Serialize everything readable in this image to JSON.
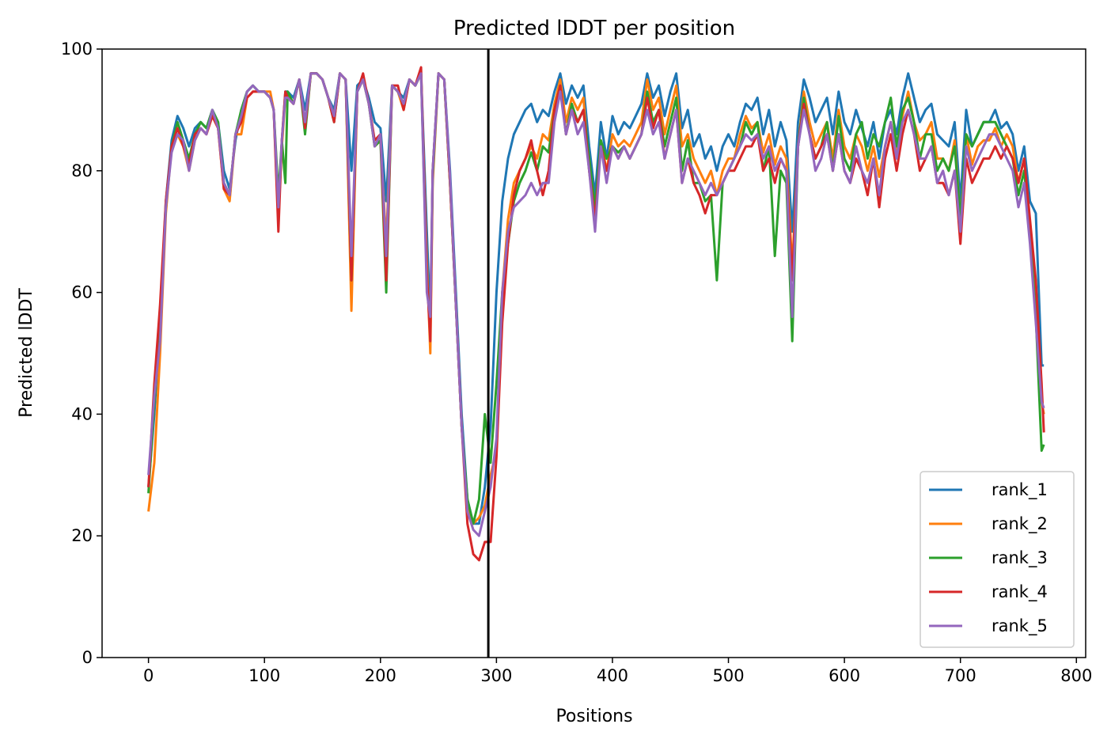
{
  "chart_data": {
    "type": "line",
    "title": "Predicted lDDT per position",
    "xlabel": "Positions",
    "ylabel": "Predicted lDDT",
    "xlim": [
      -40,
      808
    ],
    "ylim": [
      0,
      100
    ],
    "xticks": [
      0,
      100,
      200,
      300,
      400,
      500,
      600,
      700,
      800
    ],
    "yticks": [
      0,
      20,
      40,
      60,
      80,
      100
    ],
    "grid": false,
    "legend_position": "lower right",
    "vline": {
      "x": 293,
      "color": "#000000"
    },
    "x": [
      0,
      5,
      10,
      15,
      20,
      25,
      30,
      35,
      40,
      45,
      50,
      55,
      60,
      65,
      70,
      75,
      80,
      85,
      90,
      95,
      100,
      105,
      108,
      112,
      115,
      118,
      120,
      125,
      130,
      135,
      140,
      145,
      150,
      155,
      160,
      165,
      170,
      175,
      180,
      185,
      190,
      195,
      200,
      205,
      210,
      215,
      220,
      225,
      230,
      235,
      240,
      243,
      245,
      250,
      255,
      260,
      265,
      270,
      275,
      280,
      285,
      290,
      295,
      300,
      305,
      310,
      315,
      320,
      325,
      330,
      335,
      340,
      345,
      350,
      355,
      360,
      365,
      370,
      375,
      380,
      385,
      390,
      395,
      400,
      405,
      410,
      415,
      420,
      425,
      430,
      435,
      440,
      445,
      450,
      455,
      460,
      465,
      470,
      475,
      480,
      485,
      490,
      495,
      500,
      505,
      510,
      515,
      520,
      525,
      530,
      535,
      540,
      545,
      550,
      555,
      560,
      565,
      570,
      575,
      580,
      585,
      590,
      595,
      600,
      605,
      610,
      615,
      620,
      625,
      630,
      635,
      640,
      645,
      650,
      655,
      660,
      665,
      670,
      675,
      680,
      685,
      690,
      695,
      700,
      705,
      710,
      715,
      720,
      725,
      730,
      735,
      740,
      745,
      750,
      755,
      760,
      765,
      770,
      772
    ],
    "series": [
      {
        "name": "rank_1",
        "color": "#1f77b4",
        "values": [
          28,
          40,
          55,
          75,
          85,
          89,
          87,
          84,
          87,
          88,
          87,
          90,
          88,
          80,
          77,
          85,
          90,
          93,
          94,
          93,
          93,
          92,
          90,
          72,
          85,
          93,
          93,
          92,
          95,
          90,
          96,
          96,
          95,
          92,
          90,
          96,
          95,
          80,
          94,
          95,
          92,
          88,
          87,
          75,
          94,
          93,
          92,
          95,
          94,
          96,
          70,
          55,
          80,
          96,
          95,
          80,
          60,
          40,
          26,
          22,
          22,
          28,
          38,
          60,
          75,
          82,
          86,
          88,
          90,
          91,
          88,
          90,
          89,
          93,
          96,
          91,
          94,
          92,
          94,
          84,
          76,
          88,
          82,
          89,
          86,
          88,
          87,
          89,
          91,
          96,
          92,
          94,
          89,
          93,
          96,
          87,
          90,
          84,
          86,
          82,
          84,
          80,
          84,
          86,
          84,
          88,
          91,
          90,
          92,
          86,
          90,
          84,
          88,
          85,
          70,
          88,
          95,
          92,
          88,
          90,
          92,
          86,
          93,
          88,
          86,
          90,
          87,
          84,
          88,
          82,
          88,
          90,
          86,
          92,
          96,
          92,
          88,
          90,
          91,
          86,
          85,
          84,
          88,
          75,
          90,
          84,
          86,
          88,
          88,
          90,
          87,
          88,
          86,
          80,
          84,
          75,
          73,
          48,
          48
        ]
      },
      {
        "name": "rank_2",
        "color": "#ff7f0e",
        "values": [
          24,
          32,
          50,
          73,
          84,
          86,
          84,
          80,
          85,
          87,
          86,
          89,
          87,
          77,
          75,
          86,
          86,
          92,
          93,
          93,
          93,
          93,
          90,
          73,
          84,
          92,
          92,
          91,
          95,
          87,
          96,
          96,
          95,
          92,
          89,
          96,
          95,
          57,
          93,
          95,
          91,
          84,
          85,
          68,
          94,
          93,
          90,
          95,
          94,
          96,
          65,
          50,
          78,
          96,
          95,
          78,
          58,
          38,
          25,
          22,
          23,
          25,
          30,
          34,
          60,
          72,
          78,
          80,
          82,
          84,
          82,
          86,
          85,
          91,
          95,
          88,
          92,
          90,
          92,
          80,
          72,
          85,
          80,
          86,
          84,
          85,
          84,
          86,
          88,
          95,
          90,
          92,
          86,
          90,
          94,
          84,
          86,
          82,
          80,
          78,
          80,
          76,
          80,
          82,
          82,
          86,
          89,
          87,
          88,
          83,
          86,
          81,
          84,
          82,
          64,
          84,
          93,
          88,
          84,
          86,
          88,
          82,
          90,
          84,
          82,
          86,
          84,
          80,
          84,
          79,
          84,
          88,
          83,
          89,
          93,
          88,
          85,
          86,
          88,
          82,
          82,
          80,
          85,
          72,
          86,
          81,
          84,
          85,
          85,
          87,
          84,
          86,
          84,
          78,
          82,
          70,
          60,
          42,
          40
        ]
      },
      {
        "name": "rank_3",
        "color": "#2ca02c",
        "values": [
          27,
          42,
          54,
          74,
          84,
          88,
          85,
          82,
          86,
          88,
          87,
          90,
          88,
          78,
          76,
          86,
          90,
          93,
          94,
          93,
          93,
          92,
          90,
          76,
          85,
          78,
          93,
          91,
          95,
          86,
          96,
          96,
          95,
          92,
          88,
          96,
          95,
          62,
          93,
          95,
          91,
          84,
          85,
          60,
          94,
          93,
          91,
          95,
          94,
          96,
          62,
          54,
          79,
          96,
          95,
          78,
          58,
          38,
          26,
          22,
          26,
          40,
          32,
          45,
          60,
          68,
          75,
          78,
          80,
          83,
          80,
          84,
          83,
          90,
          94,
          86,
          91,
          88,
          90,
          82,
          74,
          85,
          82,
          84,
          83,
          84,
          82,
          84,
          86,
          93,
          88,
          90,
          84,
          88,
          92,
          80,
          85,
          78,
          78,
          75,
          76,
          62,
          78,
          80,
          82,
          84,
          88,
          86,
          88,
          80,
          84,
          66,
          80,
          78,
          52,
          84,
          92,
          86,
          82,
          84,
          88,
          80,
          89,
          82,
          80,
          86,
          88,
          82,
          86,
          84,
          88,
          92,
          84,
          90,
          92,
          88,
          82,
          86,
          86,
          80,
          82,
          80,
          84,
          72,
          86,
          84,
          86,
          88,
          88,
          88,
          86,
          84,
          82,
          76,
          80,
          70,
          56,
          34,
          35
        ]
      },
      {
        "name": "rank_4",
        "color": "#d62728",
        "values": [
          28,
          45,
          58,
          75,
          84,
          87,
          84,
          81,
          86,
          87,
          86,
          89,
          87,
          77,
          76,
          86,
          88,
          92,
          93,
          93,
          93,
          92,
          90,
          70,
          85,
          93,
          92,
          91,
          95,
          87,
          96,
          96,
          95,
          92,
          88,
          96,
          95,
          62,
          93,
          96,
          91,
          85,
          86,
          62,
          94,
          94,
          90,
          95,
          94,
          97,
          63,
          52,
          80,
          96,
          95,
          78,
          58,
          38,
          22,
          17,
          16,
          19,
          19,
          33,
          55,
          68,
          76,
          80,
          82,
          85,
          80,
          76,
          80,
          90,
          94,
          86,
          90,
          88,
          90,
          80,
          72,
          84,
          80,
          84,
          82,
          84,
          82,
          84,
          86,
          92,
          87,
          90,
          82,
          86,
          90,
          78,
          82,
          78,
          76,
          73,
          76,
          76,
          78,
          80,
          80,
          82,
          84,
          84,
          86,
          80,
          82,
          78,
          82,
          80,
          62,
          84,
          91,
          86,
          82,
          84,
          86,
          80,
          86,
          80,
          78,
          82,
          80,
          76,
          82,
          74,
          82,
          86,
          80,
          86,
          90,
          86,
          80,
          82,
          84,
          78,
          78,
          76,
          80,
          68,
          82,
          78,
          80,
          82,
          82,
          84,
          82,
          84,
          82,
          78,
          82,
          72,
          62,
          45,
          37
        ]
      },
      {
        "name": "rank_5",
        "color": "#9467bd",
        "values": [
          30,
          43,
          52,
          74,
          83,
          86,
          85,
          80,
          85,
          87,
          86,
          90,
          87,
          78,
          76,
          86,
          89,
          93,
          94,
          93,
          93,
          92,
          90,
          74,
          85,
          92,
          92,
          91,
          95,
          88,
          96,
          96,
          95,
          92,
          89,
          96,
          95,
          66,
          93,
          95,
          91,
          84,
          86,
          66,
          94,
          93,
          91,
          95,
          94,
          96,
          60,
          56,
          80,
          96,
          95,
          79,
          58,
          38,
          24,
          21,
          20,
          24,
          28,
          36,
          60,
          70,
          74,
          75,
          76,
          78,
          76,
          78,
          78,
          88,
          93,
          86,
          90,
          86,
          88,
          80,
          70,
          84,
          78,
          84,
          82,
          84,
          82,
          84,
          86,
          90,
          86,
          88,
          82,
          86,
          90,
          78,
          82,
          80,
          78,
          76,
          78,
          76,
          78,
          80,
          82,
          84,
          86,
          85,
          86,
          82,
          84,
          80,
          82,
          80,
          56,
          84,
          90,
          86,
          80,
          82,
          86,
          80,
          86,
          80,
          78,
          84,
          80,
          78,
          82,
          76,
          84,
          88,
          82,
          88,
          90,
          86,
          82,
          82,
          84,
          78,
          80,
          76,
          80,
          70,
          84,
          80,
          82,
          84,
          86,
          86,
          84,
          82,
          80,
          74,
          78,
          68,
          55,
          42,
          41
        ]
      }
    ]
  }
}
